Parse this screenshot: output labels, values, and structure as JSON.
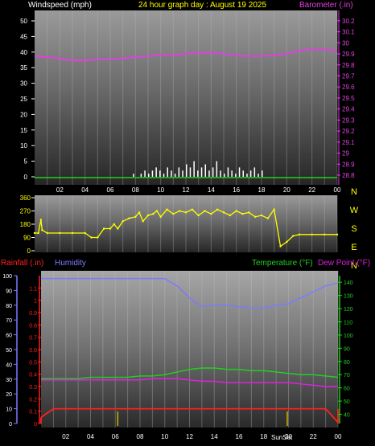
{
  "header": {
    "title": "24 hour graph day : August 19 2025",
    "left_label": "Windspeed (mph)",
    "right_label": "Barometer (.in)"
  },
  "middle": {
    "compass": [
      "N",
      "W",
      "S",
      "E",
      "N"
    ]
  },
  "bottom": {
    "rain_label": "Rainfall (.in)",
    "humidity_label": "Humidity",
    "temp_label": "Temperature (°F)",
    "dew_label": "Dew Point (°F)",
    "sunset_label": "SunSet"
  },
  "colors": {
    "title": "#ffff00",
    "barometer": "#e040e0",
    "wind_dir": "#ffff00",
    "humidity": "#7b7bff",
    "temperature": "#20d020",
    "dewpoint": "#e020e0",
    "rain": "#ff2020",
    "axis_text": "#ffffff",
    "rain_axis": "#ff2020",
    "hum_axis": "#7b7bff",
    "temp_axis": "#20d020",
    "sun_marker": "#c8b400"
  },
  "chart_data": [
    {
      "type": "bar",
      "name": "wind-barometer",
      "x_ticks": [
        "02",
        "04",
        "06",
        "08",
        "10",
        "12",
        "14",
        "16",
        "18",
        "20",
        "22",
        "00"
      ],
      "y_left_ticks": [
        0,
        5,
        10,
        15,
        20,
        25,
        30,
        35,
        40,
        45,
        50
      ],
      "y_left_lim": [
        0,
        50
      ],
      "y_right_ticks": [
        "28.8",
        "28.9",
        "29",
        "29.1",
        "29.2",
        "29.3",
        "29.4",
        "29.5",
        "29.6",
        "29.7",
        "29.8",
        "29.9",
        "30",
        "30.1",
        "30.2"
      ],
      "y_right_lim": [
        28.8,
        30.25
      ],
      "barometer": {
        "x": [
          0,
          1,
          2,
          3,
          4,
          5,
          6,
          7,
          8,
          9,
          10,
          11,
          12,
          13,
          14,
          15,
          16,
          17,
          18,
          19,
          20,
          21,
          22,
          23,
          24
        ],
        "y": [
          29.88,
          29.87,
          29.86,
          29.84,
          29.84,
          29.85,
          29.85,
          29.86,
          29.87,
          29.88,
          29.89,
          29.89,
          29.9,
          29.91,
          29.91,
          29.9,
          29.89,
          29.88,
          29.88,
          29.89,
          29.9,
          29.93,
          29.94,
          29.94,
          29.93
        ]
      },
      "wind": {
        "x": [
          7.8,
          8.0,
          8.4,
          8.7,
          9.0,
          9.3,
          9.6,
          9.9,
          10.2,
          10.5,
          10.8,
          11.1,
          11.4,
          11.7,
          12.0,
          12.3,
          12.6,
          12.9,
          13.2,
          13.5,
          13.8,
          14.1,
          14.4,
          14.7,
          15.0,
          15.3,
          15.6,
          15.9,
          16.2,
          16.5,
          16.8,
          17.1,
          17.4,
          17.7,
          18.0
        ],
        "y": [
          1,
          0,
          1,
          2,
          1,
          2,
          3,
          2,
          1,
          3,
          2,
          1,
          3,
          2,
          4,
          3,
          5,
          2,
          3,
          4,
          2,
          3,
          5,
          2,
          1,
          3,
          2,
          1,
          3,
          2,
          1,
          2,
          3,
          1,
          2
        ]
      },
      "baseline": 0
    },
    {
      "type": "scatter",
      "name": "wind-direction",
      "x_ticks": [
        "02",
        "04",
        "06",
        "08",
        "10",
        "12",
        "14",
        "16",
        "18",
        "20",
        "22",
        "00"
      ],
      "y_ticks": [
        0,
        90,
        180,
        270,
        360
      ],
      "y_lim": [
        0,
        360
      ],
      "x": [
        0,
        0.3,
        0.5,
        0.6,
        1,
        2,
        3,
        4,
        4.5,
        5,
        5.5,
        6,
        6.3,
        6.6,
        7,
        7.5,
        8,
        8.3,
        8.6,
        9,
        9.4,
        9.7,
        10,
        10.5,
        11,
        11.5,
        12,
        12.5,
        13,
        13.5,
        14,
        14.5,
        15,
        15.5,
        16,
        16.5,
        17,
        17.5,
        18,
        18.5,
        19,
        19.5,
        20,
        20.5,
        21,
        22,
        23,
        24
      ],
      "y": [
        120,
        120,
        210,
        140,
        120,
        120,
        120,
        120,
        90,
        90,
        150,
        150,
        180,
        150,
        200,
        220,
        230,
        260,
        200,
        240,
        250,
        270,
        230,
        280,
        250,
        270,
        260,
        280,
        240,
        270,
        250,
        280,
        260,
        240,
        270,
        250,
        260,
        230,
        240,
        220,
        280,
        30,
        60,
        100,
        110,
        110,
        110,
        110
      ]
    },
    {
      "type": "line",
      "name": "rain-humidity-temp-dew",
      "x_ticks": [
        "02",
        "04",
        "06",
        "08",
        "10",
        "12",
        "14",
        "16",
        "18",
        "20",
        "22",
        "00"
      ],
      "y_rain_ticks": [
        "0",
        "0.1",
        "0.2",
        "0.3",
        "0.4",
        "0.5",
        "0.6",
        "0.7",
        "0.8",
        "0.9",
        "1",
        "1.1"
      ],
      "y_rain_lim": [
        0,
        1.2
      ],
      "y_hum_ticks": [
        0,
        10,
        20,
        30,
        40,
        50,
        60,
        70,
        80,
        90,
        100
      ],
      "y_hum_lim": [
        0,
        100
      ],
      "y_temp_ticks": [
        40,
        50,
        60,
        70,
        80,
        90,
        100,
        110,
        120,
        130,
        140
      ],
      "y_temp_lim": [
        33,
        145
      ],
      "x": [
        0,
        1,
        2,
        3,
        4,
        5,
        6,
        7,
        8,
        9,
        10,
        11,
        12,
        13,
        14,
        15,
        16,
        17,
        18,
        19,
        20,
        21,
        22,
        23,
        24
      ],
      "humidity": [
        98,
        98,
        98,
        98,
        98,
        98,
        98,
        98,
        98,
        98,
        98,
        93,
        85,
        79,
        80,
        80,
        79,
        78,
        78,
        80,
        81,
        85,
        89,
        93,
        95
      ],
      "temperature": [
        67,
        67,
        67,
        67,
        68,
        68,
        68,
        68,
        69,
        69,
        70,
        72,
        74,
        75,
        75,
        74,
        74,
        73,
        73,
        72,
        71,
        70,
        70,
        69,
        68
      ],
      "dewpoint": [
        66,
        66,
        66,
        66,
        66,
        66,
        66,
        66,
        66,
        67,
        67,
        67,
        66,
        65,
        65,
        64,
        64,
        64,
        64,
        64,
        64,
        63,
        62,
        61,
        61
      ],
      "rain": [
        0.05,
        0.12,
        0.12,
        0.12,
        0.12,
        0.12,
        0.12,
        0.12,
        0.12,
        0.12,
        0.12,
        0.12,
        0.12,
        0.12,
        0.12,
        0.12,
        0.12,
        0.12,
        0.12,
        0.12,
        0.12,
        0.12,
        0.12,
        0.12,
        0.01
      ],
      "sun_markers": [
        6.2,
        19.9
      ]
    }
  ]
}
